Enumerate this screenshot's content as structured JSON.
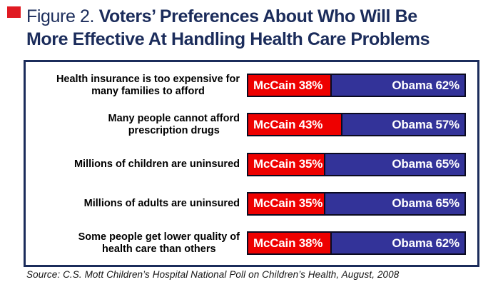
{
  "title": {
    "prefix": "Figure 2. ",
    "line1": "Voters’ Preferences About Who Will Be",
    "line2": "More Effective At Handling Health Care Problems"
  },
  "source": "Source: C.S. Mott Children’s Hospital National Poll on Children’s Health, August, 2008",
  "colors": {
    "mccain_red": "#ee0000",
    "obama_blue": "#333399",
    "frame_navy": "#1b2c5b",
    "bar_border": "#0a0a20",
    "marker_red": "#e01a22"
  },
  "chart_data": {
    "type": "bar",
    "orientation": "horizontal-stacked",
    "title": "Voters’ Preferences About Who Will Be More Effective At Handling Health Care Problems",
    "categories": [
      "Health insurance is too expensive for\nmany families to afford",
      "Many people cannot afford\nprescription drugs",
      "Millions of children are uninsured",
      "Millions of adults are uninsured",
      "Some people get lower quality of\nhealth care than others"
    ],
    "series": [
      {
        "name": "McCain",
        "color": "#ee0000",
        "values": [
          38,
          43,
          35,
          35,
          38
        ]
      },
      {
        "name": "Obama",
        "color": "#333399",
        "values": [
          62,
          57,
          65,
          65,
          62
        ]
      }
    ],
    "value_suffix": "%",
    "xlim": [
      0,
      100
    ],
    "grid": false,
    "legend": "labels-inside-bars"
  }
}
